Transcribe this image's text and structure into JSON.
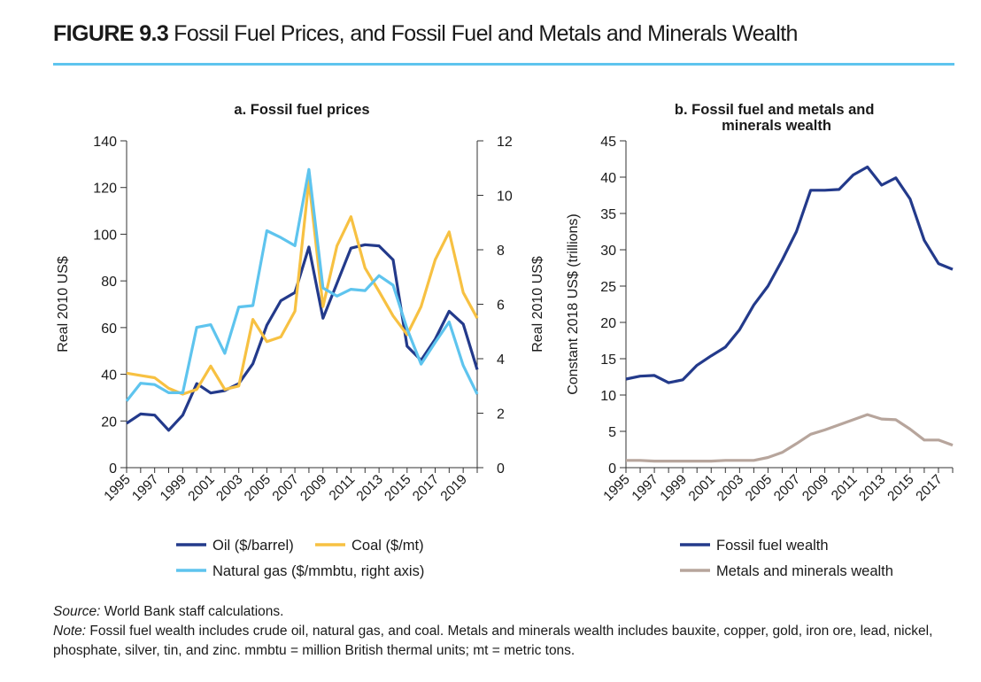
{
  "figure": {
    "number": "FIGURE 9.3",
    "title": "Fossil Fuel Prices, and Fossil Fuel and Metals and Minerals Wealth"
  },
  "colors": {
    "navy": "#233a8b",
    "gold": "#f7c142",
    "sky": "#5ec4ee",
    "taupe": "#b7a59c",
    "rule": "#5ec4ee"
  },
  "chart_data": [
    {
      "id": "a",
      "type": "line",
      "title": "a. Fossil fuel prices",
      "xlabel": "",
      "ylabel": "Real 2010 US$",
      "ylabel_right": "Real 2010 US$",
      "ylim": [
        0,
        140
      ],
      "ylim_right": [
        0,
        12
      ],
      "yticks": [
        0,
        20,
        40,
        60,
        80,
        100,
        120,
        140
      ],
      "yticks_right": [
        0,
        2,
        4,
        6,
        8,
        10,
        12
      ],
      "xticks": [
        "1995",
        "1997",
        "1999",
        "2001",
        "2003",
        "2005",
        "2007",
        "2009",
        "2011",
        "2013",
        "2015",
        "2017",
        "2019"
      ],
      "grid": false,
      "legend_position": "bottom",
      "x": [
        1995,
        1996,
        1997,
        1998,
        1999,
        2000,
        2001,
        2002,
        2003,
        2004,
        2005,
        2006,
        2007,
        2008,
        2009,
        2010,
        2011,
        2012,
        2013,
        2014,
        2015,
        2016,
        2017,
        2018,
        2019,
        2020
      ],
      "series": [
        {
          "name": "Oil ($/barrel)",
          "color": "#233a8b",
          "axis": "left",
          "values": [
            19,
            23,
            22.5,
            16,
            22.5,
            36,
            32,
            33,
            36,
            44.5,
            61,
            71.5,
            75,
            94.5,
            64,
            79,
            94,
            95.5,
            95,
            89,
            52,
            46,
            55,
            67,
            61.5,
            42
          ]
        },
        {
          "name": "Coal ($/mt)",
          "color": "#f7c142",
          "axis": "left",
          "values": [
            40.5,
            39.5,
            38.5,
            34,
            31.5,
            33.5,
            43.5,
            33.5,
            35,
            63.5,
            54,
            56,
            67,
            123,
            69,
            95,
            107.5,
            85.5,
            75.5,
            65,
            57,
            69,
            89,
            101,
            75,
            64
          ]
        },
        {
          "name": "Natural gas ($/mmbtu, right axis)",
          "color": "#5ec4ee",
          "axis": "right",
          "values": [
            2.45,
            3.1,
            3.05,
            2.75,
            2.75,
            5.15,
            5.25,
            4.2,
            5.9,
            5.95,
            8.7,
            8.45,
            8.15,
            10.95,
            6.6,
            6.3,
            6.55,
            6.5,
            7.05,
            6.7,
            5.1,
            3.8,
            4.6,
            5.35,
            3.75,
            2.7
          ]
        }
      ]
    },
    {
      "id": "b",
      "type": "line",
      "title": "b. Fossil fuel and metals and minerals wealth",
      "xlabel": "",
      "ylabel": "Constant 2018 US$ (trillions)",
      "ylim": [
        0,
        45
      ],
      "yticks": [
        0,
        5,
        10,
        15,
        20,
        25,
        30,
        35,
        40,
        45
      ],
      "xticks": [
        "1995",
        "1997",
        "1999",
        "2001",
        "2003",
        "2005",
        "2007",
        "2009",
        "2011",
        "2013",
        "2015",
        "2017"
      ],
      "grid": false,
      "legend_position": "bottom",
      "x": [
        1995,
        1996,
        1997,
        1998,
        1999,
        2000,
        2001,
        2002,
        2003,
        2004,
        2005,
        2006,
        2007,
        2008,
        2009,
        2010,
        2011,
        2012,
        2013,
        2014,
        2015,
        2016,
        2017,
        2018
      ],
      "series": [
        {
          "name": "Fossil fuel wealth",
          "color": "#233a8b",
          "values": [
            12.2,
            12.6,
            12.7,
            11.7,
            12.1,
            14.1,
            15.4,
            16.6,
            19,
            22.4,
            25,
            28.6,
            32.5,
            38.2,
            38.2,
            38.3,
            40.3,
            41.4,
            38.9,
            39.9,
            37,
            31.3,
            28.1,
            27.3
          ]
        },
        {
          "name": "Metals and minerals wealth",
          "color": "#b7a59c",
          "values": [
            1,
            1,
            0.9,
            0.9,
            0.9,
            0.9,
            0.9,
            1,
            1,
            1,
            1.4,
            2.1,
            3.3,
            4.6,
            5.2,
            5.9,
            6.6,
            7.3,
            6.7,
            6.6,
            5.3,
            3.8,
            3.8,
            3.1
          ]
        }
      ]
    }
  ],
  "footnotes": {
    "source_lead": "Source:",
    "source_text": " World Bank staff calculations.",
    "note_lead": "Note:",
    "note_text": " Fossil fuel wealth includes crude oil, natural gas, and coal. Metals and minerals wealth includes bauxite, copper, gold, iron ore, lead, nickel, phosphate, silver, tin, and zinc. mmbtu = million British thermal units; mt = metric tons."
  }
}
